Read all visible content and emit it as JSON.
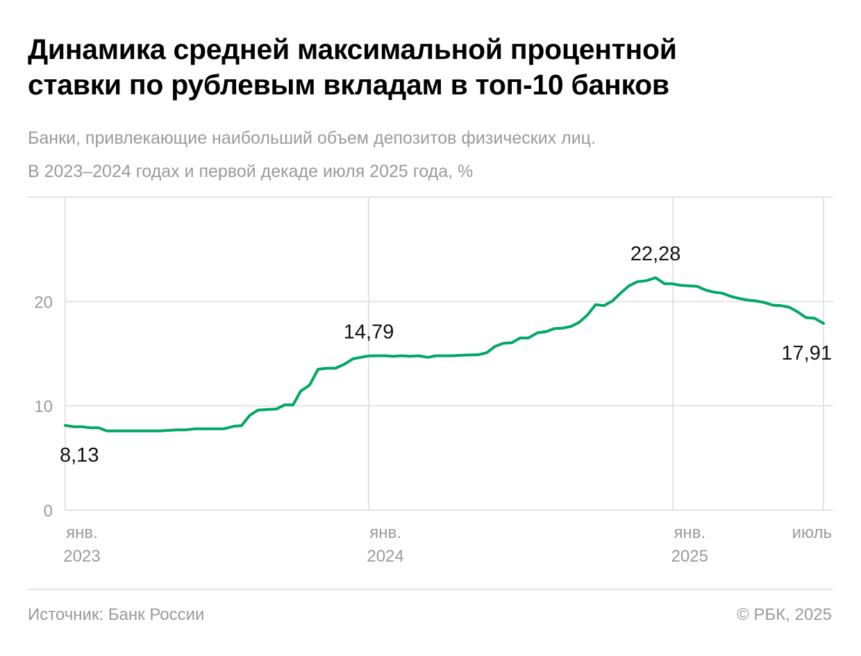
{
  "title_lines": [
    "Динамика средней максимальной процентной",
    "ставки по рублевым вкладам в топ-10 банков"
  ],
  "subtitle_lines": [
    "Банки, привлекающие наибольший объем депозитов физических лиц.",
    "В 2023–2024 годах и первой декаде июля 2025 года, %"
  ],
  "footer": {
    "source": "Источник: Банк России",
    "copyright": "© РБК, 2025"
  },
  "colors": {
    "line": "#00a862",
    "grid": "#e3e3e3",
    "axis_text": "#9a9a9a"
  },
  "chart_data": {
    "type": "line",
    "title": "Динамика средней максимальной процентной ставки по рублевым вкладам в топ-10 банков",
    "xlabel": "",
    "ylabel": "",
    "ylim": [
      0,
      30
    ],
    "xlim": [
      "2023-01-01",
      "2025-07-01"
    ],
    "grid": true,
    "y_ticks": [
      {
        "value": 0,
        "label": "0"
      },
      {
        "value": 10,
        "label": "10"
      },
      {
        "value": 20,
        "label": "20"
      },
      {
        "value": 30,
        "label": ""
      }
    ],
    "x_ticks": [
      {
        "date": "2023-01-01",
        "label1": "янв.",
        "label2": "2023"
      },
      {
        "date": "2024-01-01",
        "label1": "янв.",
        "label2": "2024"
      },
      {
        "date": "2025-01-01",
        "label1": "янв.",
        "label2": "2025"
      },
      {
        "date": "2025-07-01",
        "label1": "июль",
        "label2": ""
      }
    ],
    "annotations": [
      {
        "date": "2023-01-01",
        "value": 8.13,
        "label": "8,13",
        "pos": "below"
      },
      {
        "date": "2024-01-01",
        "value": 14.79,
        "label": "14,79",
        "pos": "above"
      },
      {
        "date": "2024-12-11",
        "value": 22.28,
        "label": "22,28",
        "pos": "above"
      },
      {
        "date": "2025-07-01",
        "value": 17.91,
        "label": "17,91",
        "pos": "below"
      }
    ],
    "series": [
      {
        "x": [
          "2023-01-01",
          "2023-01-11",
          "2023-01-21",
          "2023-01-31",
          "2023-02-10",
          "2023-02-20",
          "2023-03-01",
          "2023-03-21",
          "2023-04-14",
          "2023-04-25",
          "2023-05-05",
          "2023-05-16",
          "2023-05-26",
          "2023-06-06",
          "2023-07-11",
          "2023-07-23",
          "2023-08-01",
          "2023-08-11",
          "2023-08-21",
          "2023-09-12",
          "2023-09-22",
          "2023-10-02",
          "2023-10-11",
          "2023-10-22",
          "2023-11-01",
          "2023-11-11",
          "2023-11-22",
          "2023-12-03",
          "2023-12-13",
          "2023-12-22",
          "2024-01-01",
          "2024-01-11",
          "2024-01-21",
          "2024-01-31",
          "2024-02-10",
          "2024-02-20",
          "2024-03-01",
          "2024-03-12",
          "2024-03-22",
          "2024-04-11",
          "2024-04-21",
          "2024-05-12",
          "2024-05-22",
          "2024-06-01",
          "2024-06-11",
          "2024-06-21",
          "2024-07-01",
          "2024-07-11",
          "2024-07-22",
          "2024-08-01",
          "2024-08-11",
          "2024-08-21",
          "2024-08-31",
          "2024-09-10",
          "2024-09-20",
          "2024-09-30",
          "2024-10-10",
          "2024-10-20",
          "2024-10-30",
          "2024-11-09",
          "2024-11-19",
          "2024-11-30",
          "2024-12-11",
          "2024-12-22",
          "2024-12-31",
          "2025-01-10",
          "2025-01-20",
          "2025-01-30",
          "2025-02-09",
          "2025-02-19",
          "2025-03-01",
          "2025-03-11",
          "2025-03-21",
          "2025-03-31",
          "2025-04-11",
          "2025-04-21",
          "2025-05-01",
          "2025-05-11",
          "2025-05-21",
          "2025-05-31",
          "2025-06-10",
          "2025-06-20",
          "2025-07-01"
        ],
        "y": [
          8.13,
          8.0,
          8.0,
          7.9,
          7.9,
          7.6,
          7.6,
          7.6,
          7.6,
          7.6,
          7.65,
          7.7,
          7.7,
          7.8,
          7.8,
          8.05,
          8.1,
          9.1,
          9.6,
          9.7,
          10.1,
          10.1,
          11.4,
          12.0,
          13.5,
          13.6,
          13.6,
          14.0,
          14.5,
          14.65,
          14.79,
          14.8,
          14.8,
          14.75,
          14.8,
          14.75,
          14.8,
          14.65,
          14.8,
          14.8,
          14.85,
          14.9,
          15.1,
          15.7,
          16.0,
          16.05,
          16.5,
          16.5,
          17.0,
          17.1,
          17.4,
          17.45,
          17.6,
          18.0,
          18.7,
          19.7,
          19.6,
          20.05,
          20.8,
          21.5,
          21.9,
          22.0,
          22.28,
          21.7,
          21.7,
          21.55,
          21.5,
          21.45,
          21.1,
          20.9,
          20.8,
          20.5,
          20.3,
          20.15,
          20.05,
          19.9,
          19.65,
          19.6,
          19.45,
          19.0,
          18.45,
          18.4,
          17.91
        ]
      }
    ]
  }
}
